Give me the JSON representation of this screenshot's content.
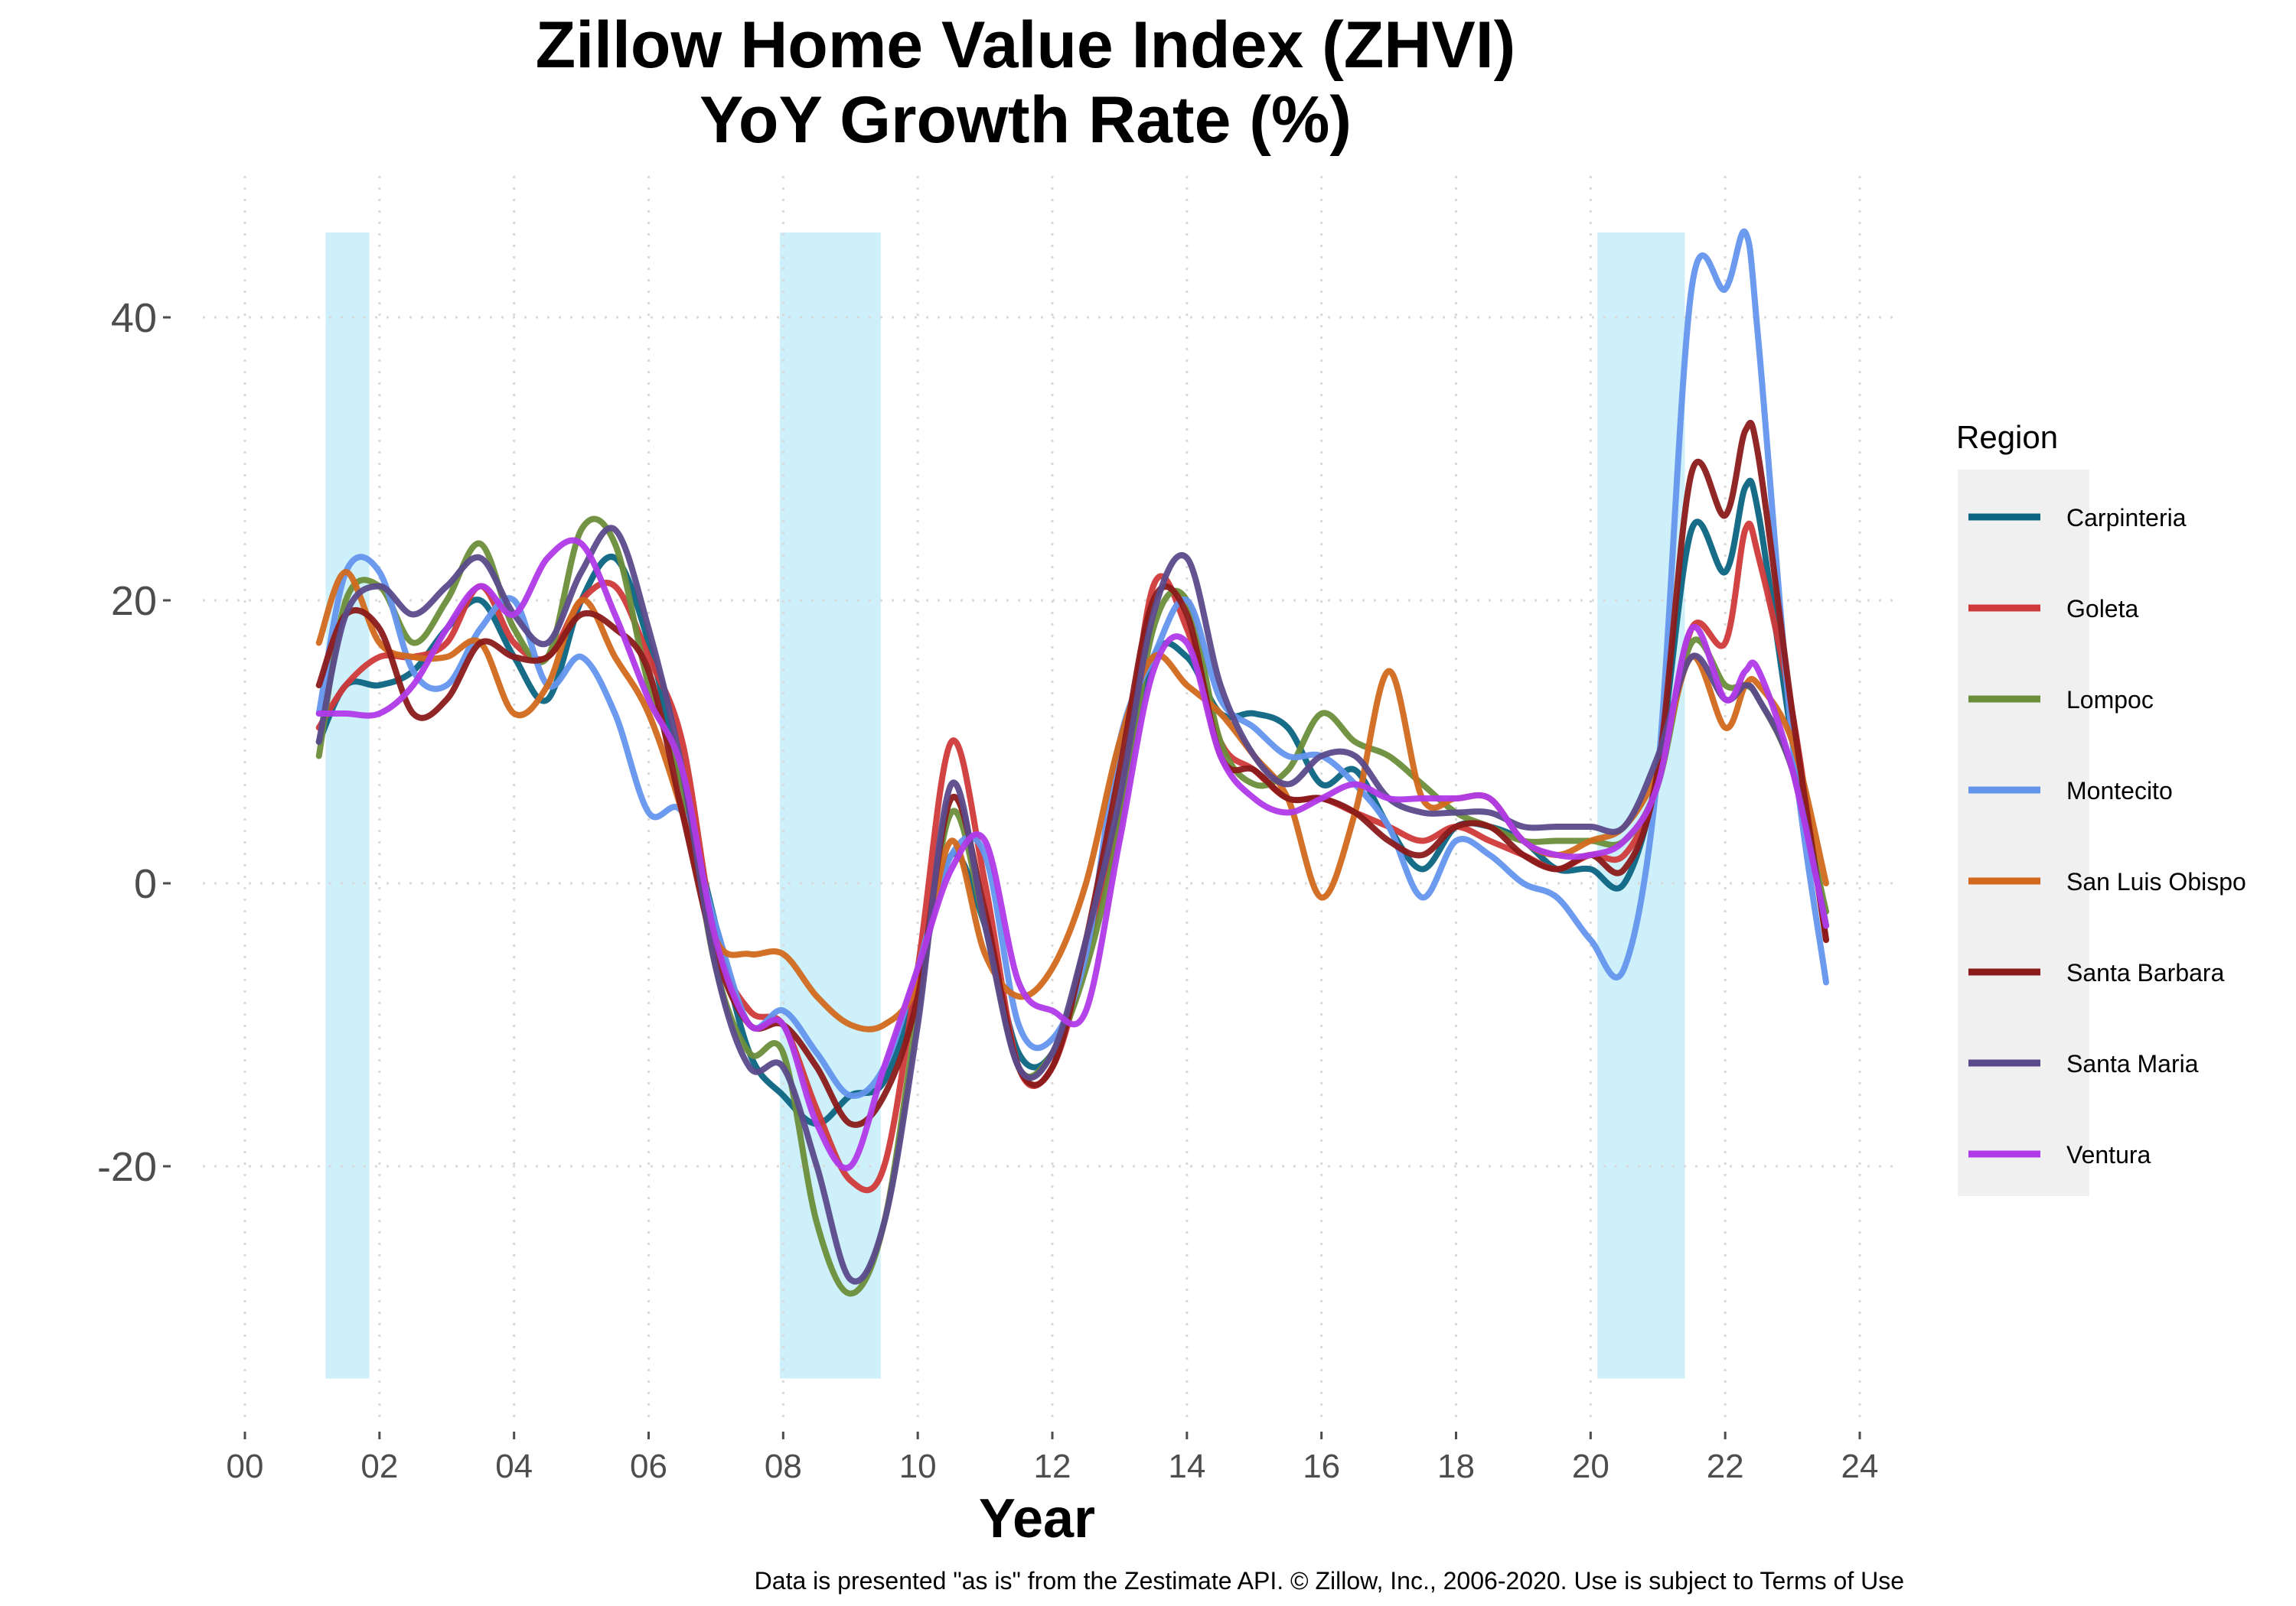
{
  "chart_data": {
    "type": "line",
    "title": "Zillow Home Value Index (ZHVI)",
    "subtitle": "YoY Growth Rate (%)",
    "xlabel": "Year",
    "ylabel": "",
    "caption": "Data is presented \"as is\" from the Zestimate API. © Zillow, Inc., 2006-2020. Use is subject to Terms of Use",
    "xlim": [
      0,
      24
    ],
    "ylim": [
      -39,
      50
    ],
    "x_ticks": [
      0,
      2,
      4,
      6,
      8,
      10,
      12,
      14,
      16,
      18,
      20,
      22,
      24
    ],
    "x_tick_labels": [
      "00",
      "02",
      "04",
      "06",
      "08",
      "10",
      "12",
      "14",
      "16",
      "18",
      "20",
      "22",
      "24"
    ],
    "y_ticks": [
      -20,
      0,
      20,
      40
    ],
    "y_tick_labels": [
      "-20",
      "0",
      "20",
      "40"
    ],
    "grid": true,
    "grid_style": "dotted",
    "legend": {
      "title": "Region",
      "position": "right",
      "background": "#f0f0f0"
    },
    "recession_shading": {
      "color": "#cdf0fb",
      "spans": [
        [
          1.2,
          1.85
        ],
        [
          7.95,
          9.45
        ],
        [
          20.1,
          21.4
        ]
      ],
      "y_range": [
        -35,
        46
      ]
    },
    "x": [
      1.1,
      1.5,
      2.0,
      2.5,
      3.0,
      3.5,
      4.0,
      4.5,
      5.0,
      5.5,
      6.0,
      6.5,
      7.0,
      7.5,
      8.0,
      8.5,
      9.0,
      9.5,
      10.0,
      10.5,
      11.0,
      11.5,
      12.0,
      12.5,
      13.0,
      13.5,
      14.0,
      14.5,
      15.0,
      15.5,
      16.0,
      16.5,
      17.0,
      17.5,
      18.0,
      18.5,
      19.0,
      19.5,
      20.0,
      20.5,
      21.0,
      21.5,
      22.0,
      22.3,
      22.5,
      23.0,
      23.5
    ],
    "series": [
      {
        "name": "Carpinteria",
        "color": "#0b6482",
        "values": [
          10,
          14,
          14,
          15,
          18,
          20,
          16,
          13,
          20,
          23,
          17,
          7,
          -3,
          -12,
          -15,
          -17,
          -15,
          -14,
          -7,
          2,
          -3,
          -12,
          -12,
          -5,
          5,
          16,
          16,
          12,
          12,
          11,
          7,
          8,
          4,
          1,
          4,
          4,
          3,
          1,
          1,
          0,
          8,
          25,
          22,
          28,
          26,
          10,
          -3
        ]
      },
      {
        "name": "Goleta",
        "color": "#d03a3a",
        "values": [
          11,
          14,
          16,
          16,
          17,
          21,
          17,
          16,
          20,
          21,
          16,
          10,
          -4,
          -9,
          -10,
          -16,
          -21,
          -20,
          -6,
          10,
          0,
          -13,
          -13,
          -5,
          5,
          21,
          18,
          10,
          8,
          6,
          6,
          5,
          4,
          3,
          4,
          3,
          2,
          1,
          2,
          2,
          7,
          18,
          17,
          25,
          23,
          12,
          -4
        ]
      },
      {
        "name": "Lompoc",
        "color": "#6b8e3a",
        "values": [
          9,
          20,
          21,
          17,
          20,
          24,
          18,
          16,
          25,
          24,
          14,
          7,
          -6,
          -12,
          -12,
          -24,
          -29,
          -24,
          -9,
          5,
          -3,
          -13,
          -12,
          -6,
          4,
          18,
          20,
          10,
          7,
          8,
          12,
          10,
          9,
          7,
          5,
          4,
          3,
          3,
          3,
          3,
          7,
          17,
          14,
          14,
          13,
          8,
          -2
        ]
      },
      {
        "name": "Montecito",
        "color": "#6495ed",
        "values": [
          12,
          22,
          22,
          15,
          14,
          18,
          20,
          14,
          16,
          12,
          5,
          5,
          -3,
          -10,
          -9,
          -12,
          -15,
          -13,
          -6,
          2,
          2,
          -10,
          -11,
          -5,
          10,
          16,
          20,
          13,
          11,
          9,
          9,
          7,
          4,
          -1,
          3,
          2,
          0,
          -1,
          -4,
          -6,
          8,
          42,
          42,
          46,
          38,
          10,
          -7
        ]
      },
      {
        "name": "San Luis Obispo",
        "color": "#d2691e",
        "values": [
          17,
          22,
          17,
          16,
          16,
          17,
          12,
          14,
          20,
          16,
          12,
          5,
          -4,
          -5,
          -5,
          -8,
          -10,
          -10,
          -7,
          3,
          -5,
          -8,
          -6,
          0,
          10,
          16,
          14,
          12,
          9,
          6,
          -1,
          5,
          15,
          6,
          6,
          6,
          3,
          2,
          3,
          4,
          8,
          16,
          11,
          14,
          14,
          10,
          0
        ]
      },
      {
        "name": "Santa Barbara",
        "color": "#8b1a1a",
        "values": [
          14,
          19,
          18,
          12,
          13,
          17,
          16,
          16,
          19,
          18,
          15,
          5,
          -5,
          -10,
          -10,
          -13,
          -17,
          -15,
          -8,
          6,
          -2,
          -13,
          -13,
          -4,
          8,
          20,
          19,
          9,
          8,
          6,
          6,
          5,
          3,
          2,
          4,
          4,
          2,
          1,
          2,
          1,
          8,
          29,
          26,
          32,
          30,
          12,
          -4
        ]
      },
      {
        "name": "Santa Maria",
        "color": "#5b4a8b",
        "values": [
          10,
          19,
          21,
          19,
          21,
          23,
          19,
          17,
          22,
          25,
          18,
          8,
          -6,
          -13,
          -13,
          -20,
          -28,
          -24,
          -10,
          7,
          -3,
          -13,
          -12,
          -4,
          6,
          19,
          23,
          14,
          9,
          7,
          9,
          9,
          6,
          5,
          5,
          5,
          4,
          4,
          4,
          4,
          9,
          16,
          13,
          14,
          13,
          8,
          -3
        ]
      },
      {
        "name": "Ventura",
        "color": "#b03ae8",
        "values": [
          12,
          12,
          12,
          14,
          18,
          21,
          19,
          23,
          24,
          19,
          13,
          8,
          -4,
          -10,
          -10,
          -17,
          -20,
          -13,
          -6,
          1,
          3,
          -7,
          -9,
          -9,
          3,
          15,
          17,
          9,
          6,
          5,
          6,
          7,
          6,
          6,
          6,
          6,
          3,
          2,
          2,
          3,
          7,
          18,
          13,
          15,
          15,
          8,
          -3
        ]
      }
    ]
  }
}
